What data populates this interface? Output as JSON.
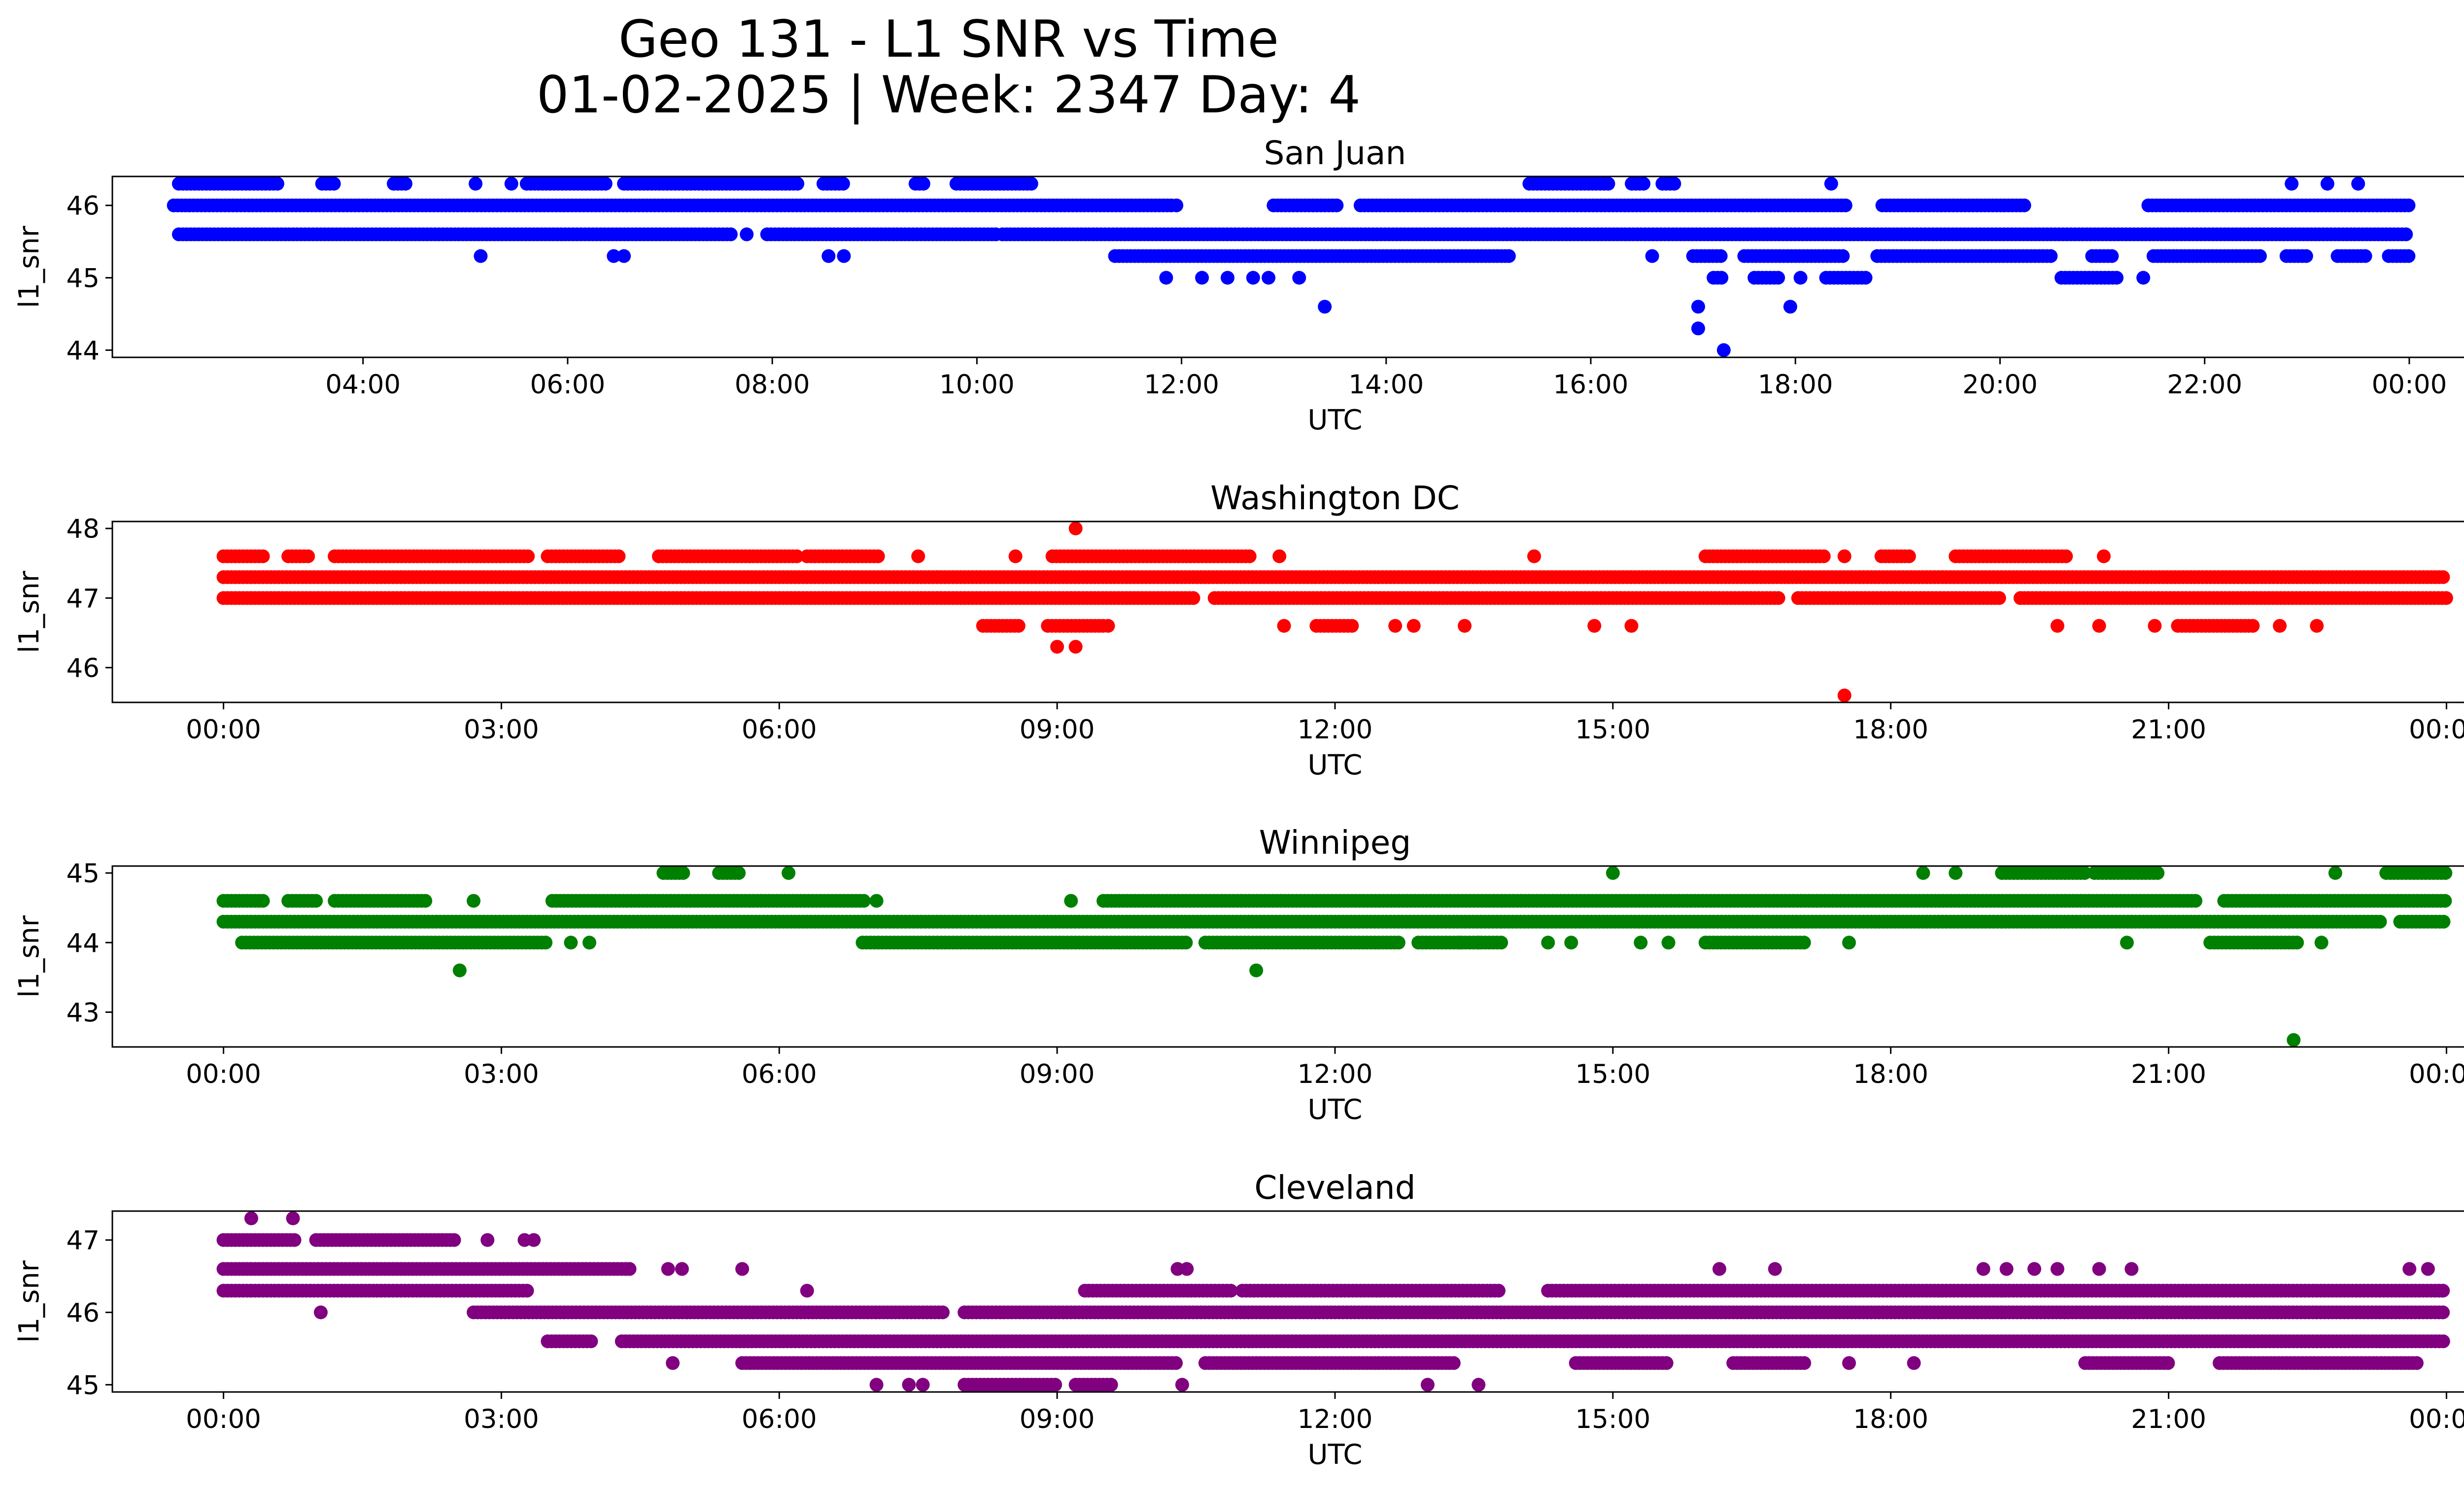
{
  "figure": {
    "title_line1": "Geo 131 - L1 SNR vs Time",
    "title_line2": "01-02-2025 | Week: 2347 Day: 4"
  },
  "chart_data": [
    {
      "type": "scatter",
      "title": "San Juan",
      "xlabel": "UTC",
      "ylabel": "l1_snr",
      "color": "#0000ff",
      "xlim_hours": [
        1.55,
        25.45
      ],
      "ylim": [
        43.9,
        46.4
      ],
      "xticks": [
        4,
        6,
        8,
        10,
        12,
        14,
        16,
        18,
        20,
        22,
        24
      ],
      "xtick_labels": [
        "04:00",
        "06:00",
        "08:00",
        "10:00",
        "12:00",
        "14:00",
        "16:00",
        "18:00",
        "20:00",
        "22:00",
        "00:00"
      ],
      "yticks": [
        44,
        45,
        46
      ],
      "ytick_labels": [
        "44",
        "45",
        "46"
      ],
      "bands": [
        {
          "y": 46.0,
          "segments": [
            [
              2.15,
              11.9
            ],
            [
              12.9,
              13.55
            ],
            [
              13.75,
              18.5
            ],
            [
              18.85,
              20.25
            ],
            [
              21.45,
              24.0
            ]
          ]
        },
        {
          "y": 45.6,
          "segments": [
            [
              2.2,
              7.6
            ],
            [
              7.95,
              10.2
            ],
            [
              10.25,
              24.0
            ]
          ]
        },
        {
          "y": 46.3,
          "segments": [
            [
              2.2,
              3.2
            ],
            [
              3.6,
              3.75
            ],
            [
              4.3,
              4.45
            ],
            [
              5.6,
              6.4
            ],
            [
              6.55,
              8.25
            ],
            [
              8.5,
              8.7
            ],
            [
              9.4,
              9.5
            ],
            [
              9.8,
              10.55
            ],
            [
              15.4,
              16.2
            ],
            [
              16.4,
              16.55
            ],
            [
              16.7,
              16.85
            ]
          ]
        },
        {
          "y": 45.3,
          "segments": [
            [
              11.35,
              15.2
            ],
            [
              17.0,
              17.3
            ],
            [
              17.5,
              18.5
            ],
            [
              18.8,
              20.5
            ],
            [
              20.9,
              21.1
            ],
            [
              21.5,
              22.55
            ],
            [
              22.8,
              23.0
            ],
            [
              23.3,
              23.6
            ],
            [
              23.8,
              24.0
            ]
          ]
        },
        {
          "y": 45.0,
          "segments": [
            [
              17.2,
              17.3
            ],
            [
              17.6,
              17.85
            ],
            [
              18.3,
              18.7
            ],
            [
              20.6,
              21.15
            ]
          ]
        }
      ],
      "points": [
        [
          5.15,
          45.3
        ],
        [
          6.45,
          45.3
        ],
        [
          6.55,
          45.3
        ],
        [
          8.55,
          45.3
        ],
        [
          8.7,
          45.3
        ],
        [
          11.85,
          45.0
        ],
        [
          12.2,
          45.0
        ],
        [
          12.45,
          45.0
        ],
        [
          12.7,
          45.0
        ],
        [
          12.85,
          45.0
        ],
        [
          13.15,
          45.0
        ],
        [
          13.4,
          44.6
        ],
        [
          15.2,
          45.3
        ],
        [
          16.6,
          45.3
        ],
        [
          17.05,
          44.6
        ],
        [
          17.05,
          44.3
        ],
        [
          17.3,
          44.0
        ],
        [
          17.95,
          44.6
        ],
        [
          18.05,
          45.0
        ],
        [
          18.35,
          46.3
        ],
        [
          21.4,
          45.0
        ],
        [
          22.85,
          46.3
        ],
        [
          23.2,
          46.3
        ],
        [
          23.5,
          46.3
        ],
        [
          5.1,
          46.3
        ],
        [
          5.45,
          46.3
        ],
        [
          7.75,
          45.6
        ],
        [
          11.95,
          46.0
        ]
      ]
    },
    {
      "type": "scatter",
      "title": "Washington DC",
      "xlabel": "UTC",
      "ylabel": "l1_snr",
      "color": "#ff0000",
      "xlim_hours": [
        -1.2,
        25.2
      ],
      "ylim": [
        45.5,
        48.1
      ],
      "xticks": [
        0,
        3,
        6,
        9,
        12,
        15,
        18,
        21,
        24
      ],
      "xtick_labels": [
        "00:00",
        "03:00",
        "06:00",
        "09:00",
        "12:00",
        "15:00",
        "18:00",
        "21:00",
        "00:00"
      ],
      "yticks": [
        46,
        47,
        48
      ],
      "ytick_labels": [
        "46",
        "47",
        "48"
      ],
      "bands": [
        {
          "y": 47.3,
          "segments": [
            [
              0.0,
              24.0
            ]
          ]
        },
        {
          "y": 47.0,
          "segments": [
            [
              0.0,
              10.5
            ],
            [
              10.7,
              16.8
            ],
            [
              17.0,
              19.2
            ],
            [
              19.4,
              24.0
            ]
          ]
        },
        {
          "y": 47.6,
          "segments": [
            [
              0.0,
              0.45
            ],
            [
              0.7,
              0.95
            ],
            [
              1.2,
              3.3
            ],
            [
              3.5,
              4.3
            ],
            [
              4.7,
              6.2
            ],
            [
              6.3,
              7.1
            ],
            [
              8.95,
              11.1
            ],
            [
              16.0,
              17.3
            ],
            [
              17.9,
              18.2
            ],
            [
              18.7,
              19.9
            ]
          ]
        },
        {
          "y": 46.6,
          "segments": [
            [
              8.2,
              8.6
            ],
            [
              8.9,
              9.5
            ],
            [
              11.8,
              12.2
            ],
            [
              21.1,
              21.95
            ]
          ]
        }
      ],
      "points": [
        [
          9.0,
          46.3
        ],
        [
          9.2,
          46.3
        ],
        [
          9.2,
          48.0
        ],
        [
          9.55,
          46.6
        ],
        [
          11.45,
          46.6
        ],
        [
          12.65,
          46.6
        ],
        [
          12.85,
          46.6
        ],
        [
          13.4,
          46.6
        ],
        [
          14.8,
          46.6
        ],
        [
          15.2,
          46.6
        ],
        [
          17.5,
          45.6
        ],
        [
          19.8,
          46.6
        ],
        [
          20.25,
          46.6
        ],
        [
          20.85,
          46.6
        ],
        [
          22.2,
          46.6
        ],
        [
          22.6,
          46.6
        ],
        [
          7.5,
          47.6
        ],
        [
          8.55,
          47.6
        ],
        [
          11.4,
          47.6
        ],
        [
          14.15,
          47.6
        ],
        [
          17.5,
          47.6
        ],
        [
          20.3,
          47.6
        ]
      ]
    },
    {
      "type": "scatter",
      "title": "Winnipeg",
      "xlabel": "UTC",
      "ylabel": "l1_snr",
      "color": "#008000",
      "xlim_hours": [
        -1.2,
        25.2
      ],
      "ylim": [
        42.5,
        45.1
      ],
      "xticks": [
        0,
        3,
        6,
        9,
        12,
        15,
        18,
        21,
        24
      ],
      "xtick_labels": [
        "00:00",
        "03:00",
        "06:00",
        "09:00",
        "12:00",
        "15:00",
        "18:00",
        "21:00",
        "00:00"
      ],
      "yticks": [
        43,
        44,
        45
      ],
      "ytick_labels": [
        "43",
        "44",
        "45"
      ],
      "bands": [
        {
          "y": 44.3,
          "segments": [
            [
              0.0,
              23.3
            ],
            [
              23.5,
              24.0
            ]
          ]
        },
        {
          "y": 44.6,
          "segments": [
            [
              0.0,
              0.45
            ],
            [
              0.7,
              1.0
            ],
            [
              1.2,
              2.2
            ],
            [
              3.55,
              6.95
            ],
            [
              9.5,
              21.3
            ],
            [
              21.6,
              24.0
            ]
          ]
        },
        {
          "y": 44.0,
          "segments": [
            [
              0.2,
              3.5
            ],
            [
              6.9,
              10.4
            ],
            [
              10.6,
              12.7
            ],
            [
              12.9,
              13.8
            ],
            [
              16.0,
              17.1
            ],
            [
              21.45,
              22.4
            ]
          ]
        },
        {
          "y": 45.0,
          "segments": [
            [
              4.75,
              5.0
            ],
            [
              5.35,
              5.6
            ],
            [
              19.2,
              20.1
            ],
            [
              20.2,
              20.9
            ],
            [
              23.35,
              24.0
            ]
          ]
        }
      ],
      "points": [
        [
          2.55,
          43.6
        ],
        [
          2.7,
          44.6
        ],
        [
          3.75,
          44.0
        ],
        [
          3.95,
          44.0
        ],
        [
          6.1,
          45.0
        ],
        [
          7.05,
          44.6
        ],
        [
          9.15,
          44.6
        ],
        [
          11.15,
          43.6
        ],
        [
          13.35,
          44.0
        ],
        [
          13.55,
          44.0
        ],
        [
          14.3,
          44.0
        ],
        [
          14.55,
          44.0
        ],
        [
          15.0,
          45.0
        ],
        [
          15.3,
          44.0
        ],
        [
          15.6,
          44.0
        ],
        [
          17.55,
          44.0
        ],
        [
          18.35,
          45.0
        ],
        [
          18.7,
          45.0
        ],
        [
          20.55,
          44.0
        ],
        [
          22.35,
          42.6
        ],
        [
          22.65,
          44.0
        ],
        [
          22.8,
          45.0
        ]
      ]
    },
    {
      "type": "scatter",
      "title": "Cleveland",
      "xlabel": "UTC",
      "ylabel": "l1_snr",
      "color": "#800080",
      "xlim_hours": [
        -1.2,
        25.2
      ],
      "ylim": [
        44.9,
        47.4
      ],
      "xticks": [
        0,
        3,
        6,
        9,
        12,
        15,
        18,
        21,
        24
      ],
      "xtick_labels": [
        "00:00",
        "03:00",
        "06:00",
        "09:00",
        "12:00",
        "15:00",
        "18:00",
        "21:00",
        "00:00"
      ],
      "yticks": [
        45,
        46,
        47
      ],
      "ytick_labels": [
        "45",
        "46",
        "47"
      ],
      "bands": [
        {
          "y": 46.6,
          "segments": [
            [
              0.0,
              4.4
            ]
          ]
        },
        {
          "y": 47.0,
          "segments": [
            [
              0.0,
              0.8
            ],
            [
              1.0,
              2.5
            ]
          ]
        },
        {
          "y": 46.3,
          "segments": [
            [
              0.0,
              3.3
            ],
            [
              9.3,
              10.9
            ],
            [
              11.0,
              13.8
            ],
            [
              14.3,
              24.0
            ]
          ]
        },
        {
          "y": 46.0,
          "segments": [
            [
              2.7,
              7.8
            ],
            [
              8.0,
              24.0
            ]
          ]
        },
        {
          "y": 45.6,
          "segments": [
            [
              3.5,
              4.0
            ],
            [
              4.3,
              24.0
            ]
          ]
        },
        {
          "y": 45.3,
          "segments": [
            [
              5.6,
              10.3
            ],
            [
              10.6,
              13.3
            ],
            [
              14.6,
              15.6
            ],
            [
              16.3,
              17.1
            ],
            [
              20.1,
              21.0
            ],
            [
              21.55,
              23.7
            ]
          ]
        },
        {
          "y": 45.0,
          "segments": [
            [
              8.0,
              9.0
            ],
            [
              9.2,
              9.6
            ]
          ]
        }
      ],
      "points": [
        [
          0.3,
          47.3
        ],
        [
          0.75,
          47.3
        ],
        [
          1.05,
          46.0
        ],
        [
          2.85,
          47.0
        ],
        [
          3.25,
          47.0
        ],
        [
          3.35,
          47.0
        ],
        [
          4.8,
          46.6
        ],
        [
          4.95,
          46.6
        ],
        [
          4.85,
          45.3
        ],
        [
          5.6,
          46.6
        ],
        [
          6.3,
          46.3
        ],
        [
          7.05,
          45.0
        ],
        [
          7.4,
          45.0
        ],
        [
          7.55,
          45.0
        ],
        [
          10.3,
          46.6
        ],
        [
          10.4,
          46.6
        ],
        [
          10.35,
          45.0
        ],
        [
          13.0,
          45.0
        ],
        [
          13.55,
          45.0
        ],
        [
          16.15,
          46.6
        ],
        [
          16.75,
          46.6
        ],
        [
          17.55,
          45.3
        ],
        [
          18.25,
          45.3
        ],
        [
          19.0,
          46.6
        ],
        [
          19.25,
          46.6
        ],
        [
          19.55,
          46.6
        ],
        [
          19.8,
          46.6
        ],
        [
          20.25,
          46.6
        ],
        [
          20.6,
          46.6
        ],
        [
          23.6,
          46.6
        ],
        [
          23.8,
          46.6
        ]
      ]
    }
  ]
}
